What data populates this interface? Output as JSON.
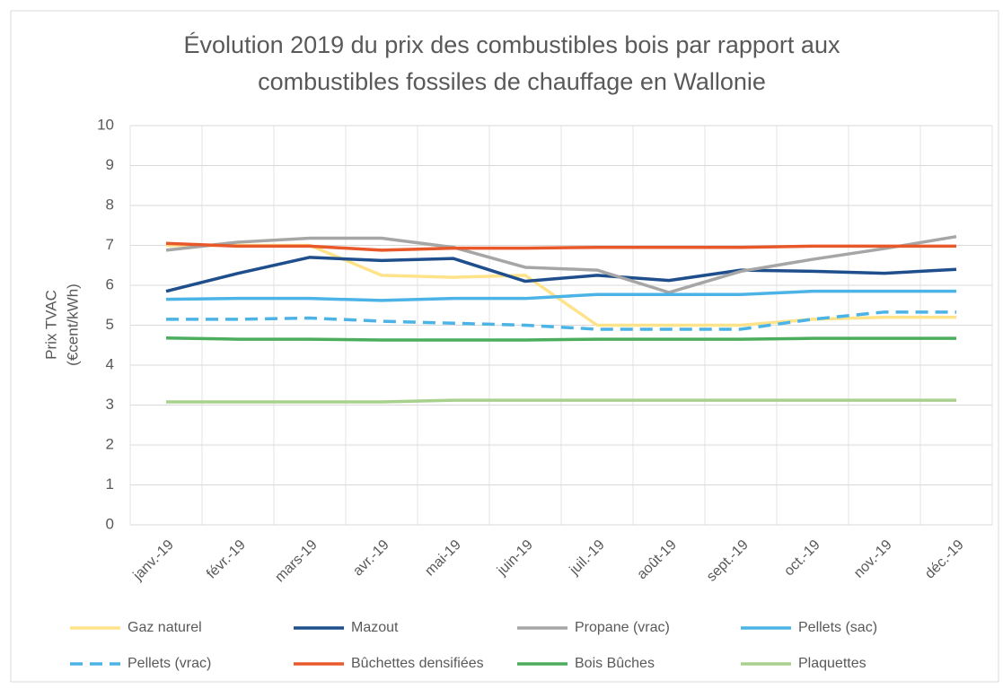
{
  "chart_data": {
    "type": "line",
    "title": [
      "Évolution 2019 du prix des combustibles bois par rapport aux",
      "combustibles fossiles de chauffage en Wallonie"
    ],
    "ylabel": [
      "Prix TVAC",
      "(€cent/kWh)"
    ],
    "categories": [
      "janv.-19",
      "févr.-19",
      "mars-19",
      "avr.-19",
      "mai-19",
      "juin-19",
      "juil.-19",
      "août-19",
      "sept.-19",
      "oct.-19",
      "nov.-19",
      "déc.-19"
    ],
    "ylim": [
      0,
      10
    ],
    "yticks": [
      0,
      1,
      2,
      3,
      4,
      5,
      6,
      7,
      8,
      9,
      10
    ],
    "grid": true,
    "series": [
      {
        "name": "Gaz naturel",
        "color": "#ffe38a",
        "values": [
          7.0,
          7.0,
          7.0,
          6.25,
          6.2,
          6.25,
          5.0,
          5.0,
          5.0,
          5.15,
          5.2,
          5.2
        ]
      },
      {
        "name": "Mazout",
        "color": "#1f4e8c",
        "values": [
          5.85,
          6.3,
          6.7,
          6.62,
          6.67,
          6.1,
          6.25,
          6.12,
          6.38,
          6.35,
          6.3,
          6.4
        ]
      },
      {
        "name": "Propane (vrac)",
        "color": "#a6a6a6",
        "values": [
          6.88,
          7.08,
          7.18,
          7.18,
          6.95,
          6.45,
          6.38,
          5.82,
          6.35,
          6.65,
          6.92,
          7.22
        ]
      },
      {
        "name": "Pellets (sac)",
        "color": "#4bb3e6",
        "values": [
          5.65,
          5.67,
          5.67,
          5.62,
          5.67,
          5.67,
          5.77,
          5.77,
          5.77,
          5.85,
          5.85,
          5.85
        ]
      },
      {
        "name": "Pellets (vrac)",
        "color": "#4bb3e6",
        "dashed": true,
        "values": [
          5.15,
          5.15,
          5.18,
          5.1,
          5.05,
          5.0,
          4.9,
          4.9,
          4.9,
          5.15,
          5.33,
          5.33
        ]
      },
      {
        "name": "Bûchettes densifiées",
        "color": "#e8582a",
        "values": [
          7.05,
          6.98,
          6.98,
          6.88,
          6.93,
          6.93,
          6.95,
          6.95,
          6.95,
          6.98,
          6.98,
          6.98
        ]
      },
      {
        "name": "Bois Bûches",
        "color": "#4cae5c",
        "values": [
          4.68,
          4.65,
          4.65,
          4.63,
          4.63,
          4.63,
          4.65,
          4.65,
          4.65,
          4.67,
          4.67,
          4.67
        ]
      },
      {
        "name": "Plaquettes",
        "color": "#a9d18e",
        "values": [
          3.08,
          3.08,
          3.08,
          3.08,
          3.12,
          3.12,
          3.12,
          3.12,
          3.12,
          3.12,
          3.12,
          3.12
        ]
      }
    ]
  }
}
